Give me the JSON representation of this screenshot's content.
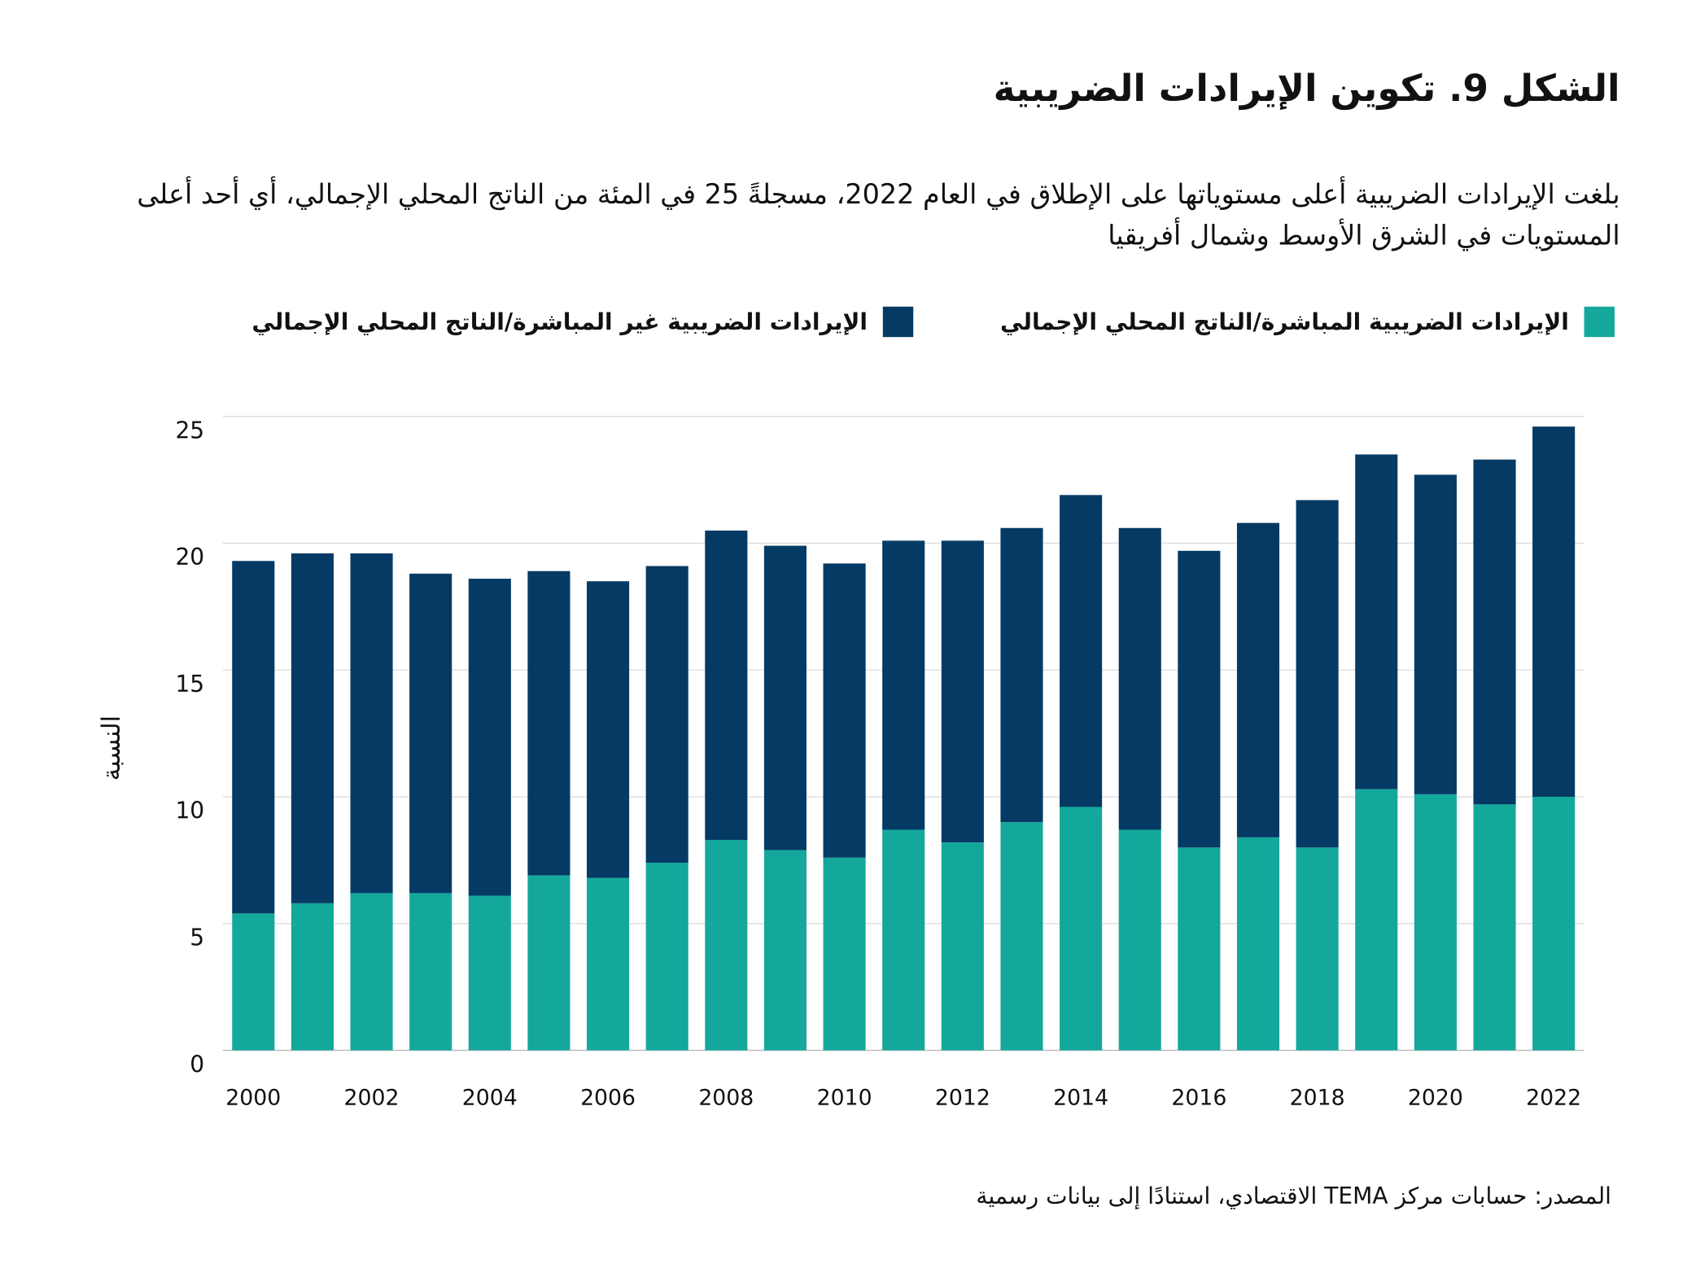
{
  "title": "الشكل 9. تكوين الإيرادات الضريبية",
  "subtitle": "بلغت الإيرادات الضريبية أعلى مستوياتها على الإطلاق في العام 2022، مسجلةً 25 في المئة من الناتج المحلي الإجمالي، أي أحد أعلى المستويات في الشرق الأوسط وشمال أفريقيا",
  "source": "المصدر: حسابات مركز TEMA الاقتصادي، استنادًا إلى بيانات رسمية",
  "chart_data": {
    "type": "bar",
    "stacked": true,
    "categories": [
      "2000",
      "2001",
      "2002",
      "2003",
      "2004",
      "2005",
      "2006",
      "2007",
      "2008",
      "2009",
      "2010",
      "2011",
      "2012",
      "2013",
      "2014",
      "2015",
      "2016",
      "2017",
      "2018",
      "2019",
      "2020",
      "2021",
      "2022"
    ],
    "x_tick_labels": [
      "2000",
      "2002",
      "2004",
      "2006",
      "2008",
      "2010",
      "2012",
      "2014",
      "2016",
      "2018",
      "2020",
      "2022"
    ],
    "series": [
      {
        "name": "الإيرادات الضريبية المباشرة/الناتج المحلي الإجمالي",
        "color": "#14a89d",
        "values": [
          5.4,
          5.8,
          6.2,
          6.2,
          6.1,
          6.9,
          6.8,
          7.4,
          8.3,
          7.9,
          7.6,
          8.7,
          8.2,
          9.0,
          9.6,
          8.7,
          8.0,
          8.4,
          8.0,
          10.3,
          10.1,
          9.7,
          10.0
        ]
      },
      {
        "name": "الإيرادات الضريبية غير المباشرة/الناتج المحلي الإجمالي",
        "color": "#043a63",
        "values": [
          13.9,
          13.8,
          13.4,
          12.6,
          12.5,
          12.0,
          11.7,
          11.7,
          12.2,
          12.0,
          11.6,
          11.4,
          11.9,
          11.6,
          12.3,
          11.9,
          11.7,
          12.4,
          13.7,
          13.2,
          12.6,
          13.6,
          14.6
        ]
      }
    ],
    "ylabel": "النسبة",
    "xlabel": "",
    "ylim": [
      0,
      25
    ],
    "yticks": [
      "0",
      "5",
      "10",
      "15",
      "20",
      "25"
    ],
    "grid": true,
    "legend": "top"
  }
}
